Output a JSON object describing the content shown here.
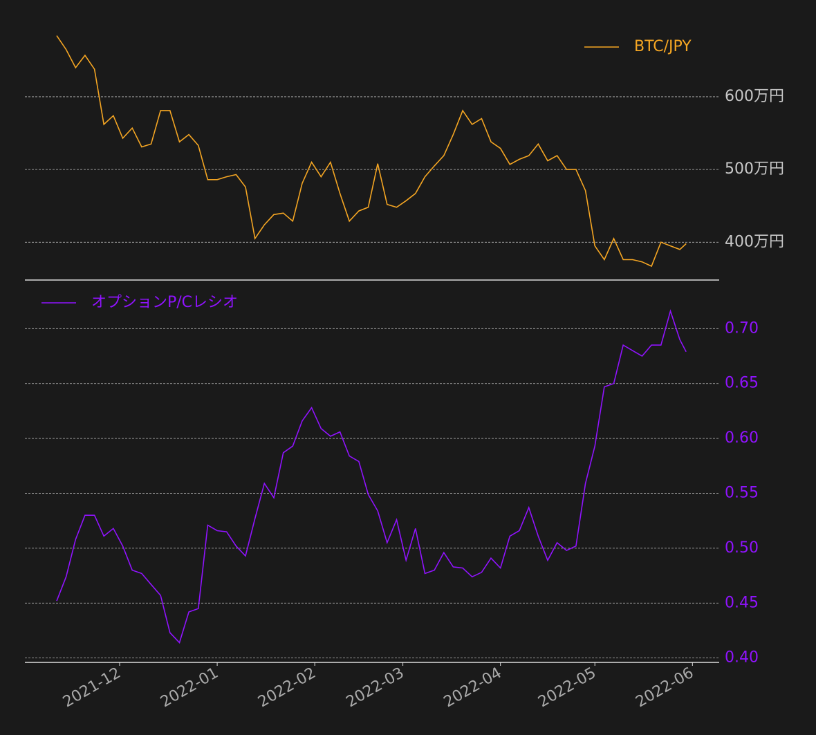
{
  "chart_data": [
    {
      "type": "line",
      "x": [
        0,
        3,
        6,
        9,
        12,
        15,
        18,
        21,
        24,
        27,
        30,
        33,
        36,
        39,
        42,
        45,
        48,
        51,
        54,
        57,
        60,
        63,
        66,
        69,
        72,
        75,
        78,
        81,
        84,
        87,
        90,
        93,
        96,
        99,
        102,
        105,
        108,
        111,
        114,
        117,
        120,
        123,
        126,
        129,
        132,
        135,
        138,
        141,
        144,
        147,
        150,
        153,
        156,
        159,
        162,
        165,
        168,
        171,
        174,
        177,
        180,
        183,
        186,
        189,
        192,
        195,
        198,
        200
      ],
      "series": [
        {
          "name": "BTC/JPY",
          "color": "#f5a623",
          "values": [
            684,
            665,
            640,
            657,
            638,
            562,
            574,
            543,
            557,
            531,
            535,
            581,
            581,
            538,
            548,
            533,
            486,
            486,
            490,
            493,
            476,
            405,
            424,
            438,
            440,
            429,
            481,
            510,
            490,
            510,
            467,
            429,
            443,
            448,
            508,
            452,
            448,
            457,
            467,
            490,
            505,
            519,
            548,
            581,
            562,
            570,
            538,
            529,
            507,
            514,
            519,
            535,
            512,
            519,
            500,
            500,
            471,
            395,
            376,
            405,
            376,
            376,
            373,
            367,
            400,
            395,
            390,
            398
          ]
        }
      ],
      "xlim": [
        -10.1,
        210.5
      ],
      "ylim": [
        348,
        695
      ],
      "yticks": [
        {
          "value": 400,
          "label": "400万円"
        },
        {
          "value": 500,
          "label": "500万円"
        },
        {
          "value": 600,
          "label": "600万円"
        }
      ],
      "grid": true,
      "legend": "upper right"
    },
    {
      "type": "line",
      "x": [
        0,
        3,
        6,
        9,
        12,
        15,
        18,
        21,
        24,
        27,
        30,
        33,
        36,
        39,
        42,
        45,
        48,
        51,
        54,
        57,
        60,
        63,
        66,
        69,
        72,
        75,
        78,
        81,
        84,
        87,
        90,
        93,
        96,
        99,
        102,
        105,
        108,
        111,
        114,
        117,
        120,
        123,
        126,
        129,
        132,
        135,
        138,
        141,
        144,
        147,
        150,
        153,
        156,
        159,
        162,
        165,
        168,
        171,
        174,
        177,
        180,
        183,
        186,
        189,
        192,
        195,
        198,
        200
      ],
      "series": [
        {
          "name": "オプションP/Cレシオ",
          "color": "#9013fe",
          "values": [
            0.452,
            0.474,
            0.508,
            0.53,
            0.53,
            0.511,
            0.518,
            0.502,
            0.48,
            0.477,
            0.467,
            0.457,
            0.423,
            0.414,
            0.442,
            0.445,
            0.521,
            0.516,
            0.515,
            0.502,
            0.493,
            0.527,
            0.559,
            0.546,
            0.587,
            0.593,
            0.616,
            0.628,
            0.609,
            0.602,
            0.606,
            0.584,
            0.579,
            0.549,
            0.534,
            0.505,
            0.526,
            0.489,
            0.518,
            0.477,
            0.48,
            0.496,
            0.483,
            0.482,
            0.474,
            0.478,
            0.491,
            0.482,
            0.511,
            0.516,
            0.537,
            0.511,
            0.489,
            0.505,
            0.498,
            0.502,
            0.559,
            0.593,
            0.647,
            0.65,
            0.685,
            0.68,
            0.675,
            0.685,
            0.685,
            0.716,
            0.69,
            0.679
          ]
        }
      ],
      "xlim": [
        -10.1,
        210.5
      ],
      "xticks": [
        {
          "value": 20,
          "label": "2021-12"
        },
        {
          "value": 51,
          "label": "2022-01"
        },
        {
          "value": 82,
          "label": "2022-02"
        },
        {
          "value": 110,
          "label": "2022-03"
        },
        {
          "value": 141,
          "label": "2022-04"
        },
        {
          "value": 171,
          "label": "2022-05"
        },
        {
          "value": 202,
          "label": "2022-06"
        }
      ],
      "ylim": [
        0.396,
        0.738
      ],
      "yticks": [
        {
          "value": 0.4,
          "label": "0.40"
        },
        {
          "value": 0.45,
          "label": "0.45"
        },
        {
          "value": 0.5,
          "label": "0.50"
        },
        {
          "value": 0.55,
          "label": "0.55"
        },
        {
          "value": 0.6,
          "label": "0.60"
        },
        {
          "value": 0.65,
          "label": "0.65"
        },
        {
          "value": 0.7,
          "label": "0.70"
        }
      ],
      "grid": true,
      "legend": "upper left"
    }
  ]
}
